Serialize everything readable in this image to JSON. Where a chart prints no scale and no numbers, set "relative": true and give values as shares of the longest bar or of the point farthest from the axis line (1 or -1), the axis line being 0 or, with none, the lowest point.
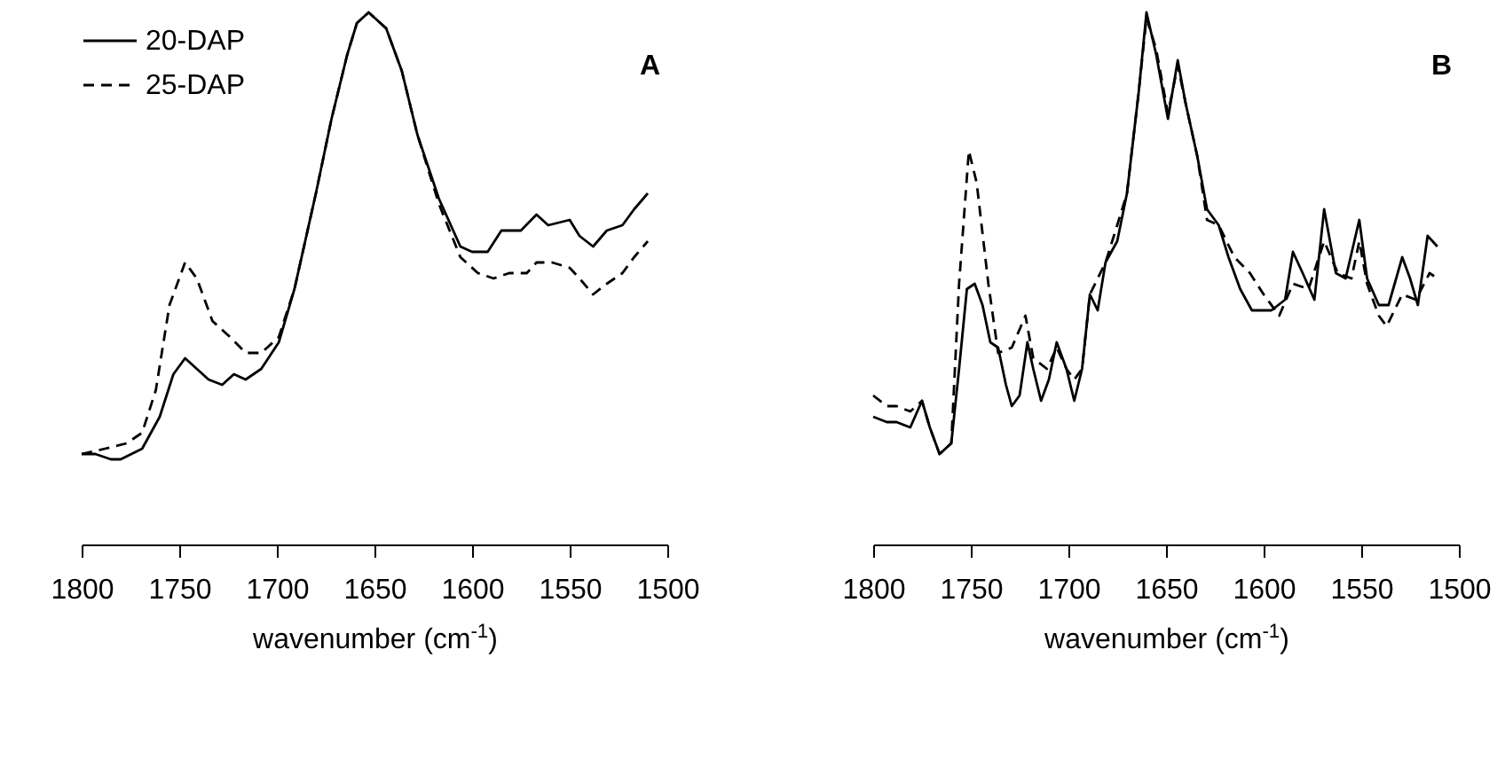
{
  "chart_data": [
    {
      "type": "line",
      "relative": true,
      "xlim": [
        1800,
        1500
      ],
      "xticks": [
        1800,
        1750,
        1700,
        1650,
        1600,
        1550,
        1500
      ],
      "xlabel": "wavenumber (cm$^{-1}$)",
      "legend": "top left",
      "annotations": [
        "A"
      ],
      "series": [
        {
          "name": "20-DAP",
          "color": "#000000",
          "line_style": "solid",
          "x": [
            1800,
            1793,
            1785,
            1780,
            1769,
            1760,
            1753,
            1747,
            1741,
            1735,
            1728,
            1722,
            1716,
            1708,
            1699,
            1691,
            1680,
            1672,
            1664,
            1659,
            1653,
            1644,
            1636,
            1628,
            1617,
            1606,
            1600,
            1592,
            1585,
            1575,
            1567,
            1561,
            1550,
            1545,
            1538,
            1531,
            1523,
            1517,
            1510
          ],
          "values": [
            0.17,
            0.17,
            0.16,
            0.16,
            0.18,
            0.24,
            0.32,
            0.35,
            0.33,
            0.31,
            0.3,
            0.32,
            0.31,
            0.33,
            0.38,
            0.48,
            0.66,
            0.8,
            0.92,
            0.98,
            1,
            0.97,
            0.89,
            0.77,
            0.65,
            0.56,
            0.55,
            0.55,
            0.59,
            0.59,
            0.62,
            0.6,
            0.61,
            0.58,
            0.56,
            0.59,
            0.6,
            0.63,
            0.66
          ]
        },
        {
          "name": "25-DAP",
          "color": "#000000",
          "line_style": "dashed",
          "x": [
            1800,
            1788,
            1777,
            1769,
            1762,
            1755,
            1747,
            1741,
            1733,
            1724,
            1716,
            1708,
            1699,
            1691,
            1680,
            1672,
            1664,
            1659,
            1653,
            1644,
            1636,
            1628,
            1617,
            1606,
            1597,
            1589,
            1581,
            1572,
            1567,
            1559,
            1550,
            1545,
            1538,
            1531,
            1523,
            1517,
            1510
          ],
          "values": [
            0.17,
            0.18,
            0.19,
            0.21,
            0.29,
            0.45,
            0.53,
            0.5,
            0.42,
            0.39,
            0.36,
            0.36,
            0.39,
            0.48,
            0.66,
            0.8,
            0.92,
            0.98,
            1,
            0.97,
            0.89,
            0.77,
            0.64,
            0.54,
            0.51,
            0.5,
            0.51,
            0.51,
            0.53,
            0.53,
            0.52,
            0.5,
            0.47,
            0.49,
            0.51,
            0.54,
            0.57
          ]
        }
      ]
    },
    {
      "type": "line",
      "relative": true,
      "xlim": [
        1800,
        1500
      ],
      "xticks": [
        1800,
        1750,
        1700,
        1650,
        1600,
        1550,
        1500
      ],
      "xlabel": "wavenumber (cm$^{-1}$)",
      "legend": "top left",
      "annotations": [
        "B"
      ],
      "series": [
        {
          "name": "20-DAP",
          "color": "#000000",
          "line_style": "solid",
          "x": [
            1800,
            1793,
            1788,
            1781,
            1775,
            1771,
            1766,
            1760,
            1756,
            1752,
            1748,
            1744,
            1740,
            1736,
            1732,
            1729,
            1725,
            1721,
            1718,
            1714,
            1710,
            1706,
            1701,
            1697,
            1693,
            1689,
            1685,
            1681,
            1675,
            1670,
            1664,
            1660,
            1655,
            1649,
            1644,
            1640,
            1634,
            1629,
            1623,
            1618,
            1612,
            1606,
            1596,
            1589,
            1585,
            1580,
            1574,
            1569,
            1563,
            1558,
            1551,
            1547,
            1541,
            1536,
            1529,
            1525,
            1521,
            1516,
            1511
          ],
          "values": [
            0.24,
            0.23,
            0.23,
            0.22,
            0.27,
            0.22,
            0.17,
            0.19,
            0.33,
            0.48,
            0.49,
            0.45,
            0.38,
            0.37,
            0.3,
            0.26,
            0.28,
            0.38,
            0.33,
            0.27,
            0.31,
            0.38,
            0.33,
            0.27,
            0.33,
            0.47,
            0.44,
            0.53,
            0.57,
            0.66,
            0.85,
            1,
            0.92,
            0.8,
            0.91,
            0.83,
            0.73,
            0.63,
            0.6,
            0.54,
            0.48,
            0.44,
            0.44,
            0.46,
            0.55,
            0.51,
            0.46,
            0.63,
            0.51,
            0.5,
            0.61,
            0.5,
            0.45,
            0.45,
            0.54,
            0.5,
            0.45,
            0.58,
            0.56
          ]
        },
        {
          "name": "25-DAP",
          "color": "#000000",
          "line_style": "dashed",
          "x": [
            1800,
            1793,
            1788,
            1781,
            1775,
            1771,
            1766,
            1760,
            1756,
            1751,
            1747,
            1741,
            1736,
            1729,
            1722,
            1718,
            1711,
            1706,
            1701,
            1697,
            1693,
            1689,
            1681,
            1675,
            1670,
            1664,
            1660,
            1655,
            1649,
            1644,
            1640,
            1634,
            1629,
            1623,
            1615,
            1607,
            1600,
            1592,
            1585,
            1577,
            1569,
            1562,
            1555,
            1551,
            1547,
            1541,
            1537,
            1529,
            1522,
            1515,
            1511
          ],
          "values": [
            0.28,
            0.26,
            0.26,
            0.25,
            0.27,
            0.22,
            0.17,
            0.19,
            0.49,
            0.74,
            0.68,
            0.49,
            0.36,
            0.37,
            0.43,
            0.35,
            0.33,
            0.37,
            0.33,
            0.31,
            0.33,
            0.47,
            0.53,
            0.6,
            0.66,
            0.85,
            0.99,
            0.93,
            0.81,
            0.9,
            0.83,
            0.73,
            0.61,
            0.6,
            0.54,
            0.51,
            0.47,
            0.43,
            0.49,
            0.48,
            0.57,
            0.51,
            0.5,
            0.57,
            0.49,
            0.43,
            0.41,
            0.47,
            0.46,
            0.51,
            0.5
          ]
        }
      ]
    }
  ]
}
